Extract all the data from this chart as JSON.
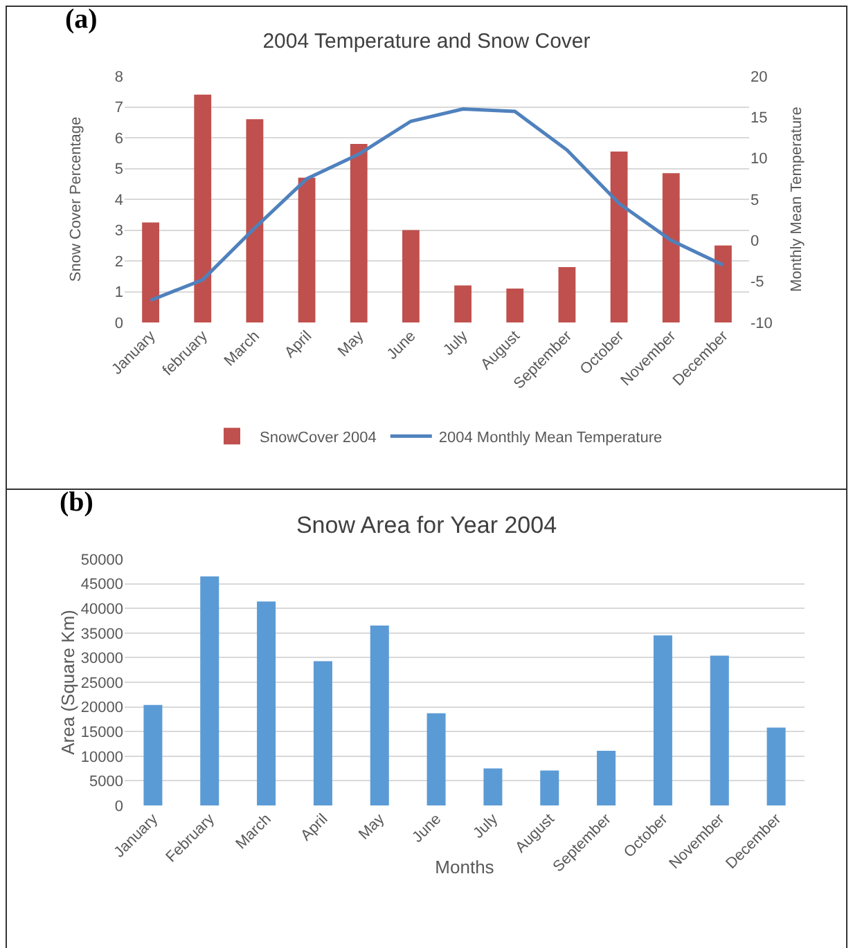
{
  "chart_data": [
    {
      "type": "bar",
      "title": "2004 Temperature and Snow Cover",
      "annotations": [
        "(a)"
      ],
      "ylabel": "Snow Cover Percentage",
      "y2label": "Monthly Mean Temperature",
      "categories": [
        "January",
        "february",
        "March",
        "April",
        "May",
        "June",
        "July",
        "August",
        "September",
        "October",
        "November",
        "December"
      ],
      "series": [
        {
          "name": "SnowCover 2004",
          "color": "#c0504d",
          "values": [
            3.25,
            7.4,
            6.6,
            4.7,
            5.8,
            3.0,
            1.2,
            1.1,
            1.8,
            5.55,
            4.85,
            2.5
          ]
        },
        {
          "name": "2004 Monthly Mean Temperature",
          "type": "line",
          "axis": "y2",
          "color": "#4f81bd",
          "values": [
            -7.3,
            -4.8,
            1.5,
            7.5,
            10.5,
            14.5,
            16,
            15.7,
            11,
            4.5,
            0,
            -3
          ]
        }
      ],
      "ylim": [
        0,
        8
      ],
      "yticks": [
        0,
        1,
        2,
        3,
        4,
        5,
        6,
        7,
        8
      ],
      "y2lim": [
        -10,
        20
      ],
      "y2ticks": [
        -10,
        -5,
        0,
        5,
        10,
        15,
        20
      ],
      "grid": "y",
      "legend": "bottom",
      "marker": "none",
      "line_style": "solid"
    },
    {
      "type": "bar",
      "title": "Snow Area for Year 2004",
      "annotations": [
        "(b)"
      ],
      "xlabel": "Months",
      "ylabel": "Area (Square Km)",
      "categories": [
        "January",
        "February",
        "March",
        "April",
        "May",
        "June",
        "July",
        "August",
        "September",
        "October",
        "November",
        "December"
      ],
      "series": [
        {
          "color": "#5b9bd5",
          "values": [
            20400,
            46500,
            41400,
            29300,
            36500,
            18700,
            7500,
            7100,
            11100,
            34500,
            30400,
            15800
          ]
        }
      ],
      "ylim": [
        0,
        50000
      ],
      "yticks": [
        0,
        5000,
        10000,
        15000,
        20000,
        25000,
        30000,
        35000,
        40000,
        45000,
        50000
      ],
      "grid": "y",
      "legend": false
    }
  ]
}
